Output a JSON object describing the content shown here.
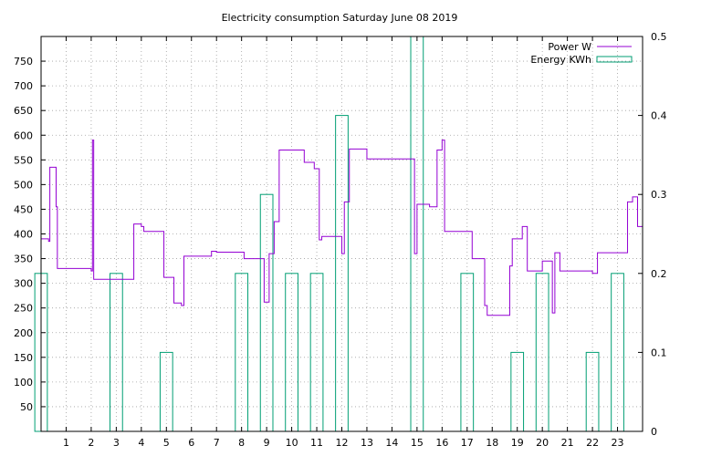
{
  "chart_data": {
    "type": "line",
    "title": "Electricity consumption Saturday June 08 2019",
    "x_ticks": [
      "1",
      "2",
      "3",
      "4",
      "5",
      "6",
      "7",
      "8",
      "9",
      "10",
      "11",
      "12",
      "13",
      "14",
      "15",
      "16",
      "17",
      "18",
      "19",
      "20",
      "21",
      "22",
      "23"
    ],
    "xlim": [
      0,
      24
    ],
    "y_ticks": [
      "50",
      "100",
      "150",
      "200",
      "250",
      "300",
      "350",
      "400",
      "450",
      "500",
      "550",
      "600",
      "650",
      "700",
      "750"
    ],
    "ylim": [
      0,
      800
    ],
    "y2_ticks": [
      "0",
      "0.1",
      "0.2",
      "0.3",
      "0.4",
      "0.5"
    ],
    "y2lim": [
      0,
      0.5
    ],
    "grid": true,
    "legend_position": "top-right",
    "series": [
      {
        "name": "Power W",
        "color": "#9400d3",
        "style": "step",
        "axis": "left",
        "x": [
          0.0,
          0.3,
          0.35,
          0.6,
          0.65,
          2.0,
          2.05,
          2.1,
          3.5,
          3.7,
          4.0,
          4.1,
          4.9,
          5.0,
          5.1,
          5.3,
          5.6,
          5.7,
          6.7,
          6.8,
          7.0,
          8.0,
          8.1,
          8.9,
          9.0,
          9.1,
          9.3,
          9.5,
          10.5,
          10.6,
          10.9,
          11.1,
          11.2,
          11.5,
          11.6,
          12.0,
          12.1,
          12.3,
          13.0,
          14.0,
          14.9,
          15.0,
          15.5,
          15.8,
          16.0,
          16.1,
          17.1,
          17.2,
          17.7,
          17.8,
          18.7,
          18.8,
          19.2,
          19.4,
          19.6,
          20.0,
          20.1,
          20.4,
          20.5,
          20.7,
          21.0,
          21.9,
          22.0,
          22.2,
          23.0,
          23.4,
          23.6,
          23.8,
          24.0
        ],
        "y": [
          390,
          385,
          535,
          455,
          330,
          325,
          590,
          308,
          308,
          420,
          415,
          405,
          312,
          312,
          312,
          260,
          255,
          355,
          355,
          365,
          363,
          363,
          350,
          262,
          262,
          360,
          425,
          570,
          545,
          545,
          532,
          388,
          395,
          395,
          395,
          360,
          465,
          572,
          552,
          552,
          360,
          460,
          455,
          570,
          590,
          405,
          405,
          350,
          255,
          235,
          335,
          390,
          415,
          325,
          325,
          345,
          345,
          240,
          362,
          325,
          325,
          325,
          320,
          362,
          362,
          465,
          475,
          415,
          415
        ]
      },
      {
        "name": "Energy KWh",
        "color": "#009e73",
        "style": "boxes",
        "axis": "right",
        "bars": [
          {
            "x": 0.0,
            "value": 0.2
          },
          {
            "x": 3.0,
            "value": 0.2
          },
          {
            "x": 5.0,
            "value": 0.1
          },
          {
            "x": 8.0,
            "value": 0.2
          },
          {
            "x": 9.0,
            "value": 0.3
          },
          {
            "x": 10.0,
            "value": 0.2
          },
          {
            "x": 11.0,
            "value": 0.2
          },
          {
            "x": 12.0,
            "value": 0.4
          },
          {
            "x": 15.0,
            "value": 0.5
          },
          {
            "x": 17.0,
            "value": 0.2
          },
          {
            "x": 19.0,
            "value": 0.1
          },
          {
            "x": 20.0,
            "value": 0.2
          },
          {
            "x": 22.0,
            "value": 0.1
          },
          {
            "x": 23.0,
            "value": 0.2
          }
        ]
      }
    ]
  }
}
